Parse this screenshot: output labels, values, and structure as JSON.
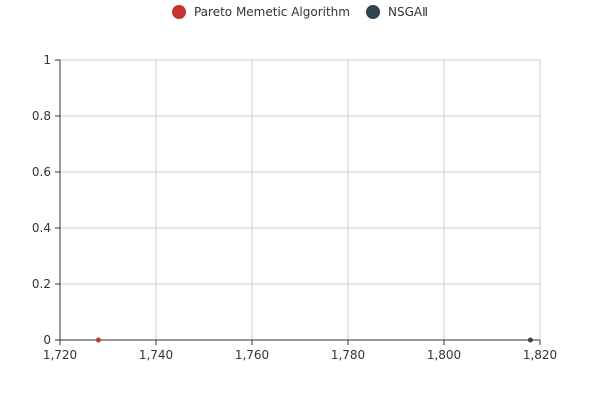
{
  "chart_data": {
    "type": "scatter",
    "title": "",
    "xlabel": "",
    "ylabel": "",
    "xlim": [
      1720,
      1820
    ],
    "ylim": [
      0,
      1
    ],
    "x_ticks": [
      "1,720",
      "1,740",
      "1,760",
      "1,780",
      "1,800",
      "1,820"
    ],
    "x_tick_values": [
      1720,
      1740,
      1760,
      1780,
      1800,
      1820
    ],
    "y_ticks": [
      "0",
      "0.2",
      "0.4",
      "0.6",
      "0.8",
      "1"
    ],
    "y_tick_values": [
      0,
      0.2,
      0.4,
      0.6,
      0.8,
      1
    ],
    "grid": true,
    "legend_position": "top-center",
    "series": [
      {
        "name": "Pareto Memetic Algorithm",
        "color": "#c23531",
        "points": [
          [
            1728,
            0
          ]
        ]
      },
      {
        "name": "NSGAⅡ",
        "color": "#2f4554",
        "points": [
          [
            1818,
            0
          ]
        ]
      }
    ]
  }
}
